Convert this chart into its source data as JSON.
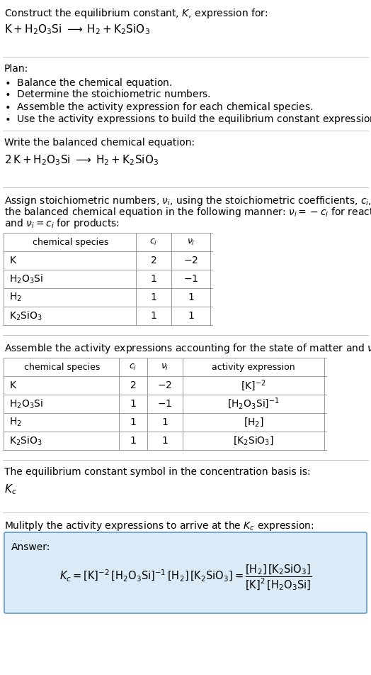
{
  "title_line1": "Construct the equilibrium constant, $K$, expression for:",
  "title_line2": "$\\mathrm{K} + \\mathrm{H_2O_3Si} \\;\\longrightarrow\\; \\mathrm{H_2} + \\mathrm{K_2SiO_3}$",
  "plan_header": "Plan:",
  "plan_items": [
    "$\\bullet$  Balance the chemical equation.",
    "$\\bullet$  Determine the stoichiometric numbers.",
    "$\\bullet$  Assemble the activity expression for each chemical species.",
    "$\\bullet$  Use the activity expressions to build the equilibrium constant expression."
  ],
  "balanced_header": "Write the balanced chemical equation:",
  "balanced_eq": "$\\mathrm{2\\,K + H_2O_3Si \\;\\longrightarrow\\; H_2 + K_2SiO_3}$",
  "stoich_intro_1": "Assign stoichiometric numbers, $\\nu_i$, using the stoichiometric coefficients, $c_i$, from",
  "stoich_intro_2": "the balanced chemical equation in the following manner: $\\nu_i = -c_i$ for reactants",
  "stoich_intro_3": "and $\\nu_i = c_i$ for products:",
  "table1_headers": [
    "chemical species",
    "$c_i$",
    "$\\nu_i$"
  ],
  "table1_rows": [
    [
      "$\\mathrm{K}$",
      "2",
      "$-2$"
    ],
    [
      "$\\mathrm{H_2O_3Si}$",
      "1",
      "$-1$"
    ],
    [
      "$\\mathrm{H_2}$",
      "1",
      "1"
    ],
    [
      "$\\mathrm{K_2SiO_3}$",
      "1",
      "1"
    ]
  ],
  "activity_intro": "Assemble the activity expressions accounting for the state of matter and $\\nu_i$:",
  "table2_headers": [
    "chemical species",
    "$c_i$",
    "$\\nu_i$",
    "activity expression"
  ],
  "table2_rows": [
    [
      "$\\mathrm{K}$",
      "2",
      "$-2$",
      "$[\\mathrm{K}]^{-2}$"
    ],
    [
      "$\\mathrm{H_2O_3Si}$",
      "1",
      "$-1$",
      "$[\\mathrm{H_2O_3Si}]^{-1}$"
    ],
    [
      "$\\mathrm{H_2}$",
      "1",
      "1",
      "$[\\mathrm{H_2}]$"
    ],
    [
      "$\\mathrm{K_2SiO_3}$",
      "1",
      "1",
      "$[\\mathrm{K_2SiO_3}]$"
    ]
  ],
  "kc_text": "The equilibrium constant symbol in the concentration basis is:",
  "kc_symbol": "$K_c$",
  "multiply_text": "Mulitply the activity expressions to arrive at the $K_c$ expression:",
  "answer_box_color": "#daeaf6",
  "answer_border_color": "#5b9bd5",
  "answer_label": "Answer:",
  "answer_eq1": "$K_c = [\\mathrm{K}]^{-2}\\,[\\mathrm{H_2O_3Si}]^{-1}\\,[\\mathrm{H_2}]\\,[\\mathrm{K_2SiO_3}] = \\dfrac{[\\mathrm{H_2}]\\,[\\mathrm{K_2SiO_3}]}{[\\mathrm{K}]^2\\,[\\mathrm{H_2O_3Si}]}$",
  "bg_color": "#ffffff",
  "text_color": "#000000",
  "divider_color": "#bbbbbb",
  "font_size": 10,
  "table_font_size": 10
}
